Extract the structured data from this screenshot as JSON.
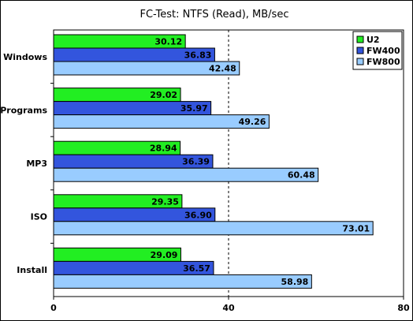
{
  "chart_data": {
    "type": "bar",
    "orientation": "horizontal",
    "title": "FC-Test: NTFS (Read), MB/sec",
    "categories": [
      "Windows",
      "Programs",
      "MP3",
      "ISO",
      "Install"
    ],
    "series": [
      {
        "name": "U2",
        "color": "#22ee22",
        "values": [
          30.12,
          29.02,
          28.94,
          29.35,
          29.09
        ]
      },
      {
        "name": "FW400",
        "color": "#3355dd",
        "values": [
          36.83,
          35.97,
          36.39,
          36.9,
          36.57
        ]
      },
      {
        "name": "FW800",
        "color": "#99ccff",
        "values": [
          42.48,
          49.26,
          60.48,
          73.01,
          58.98
        ]
      }
    ],
    "value_labels": [
      [
        "30.12",
        "29.02",
        "28.94",
        "29.35",
        "29.09"
      ],
      [
        "36.83",
        "35.97",
        "36.39",
        "36.90",
        "36.57"
      ],
      [
        "42.48",
        "49.26",
        "60.48",
        "73.01",
        "58.98"
      ]
    ],
    "xlim": [
      0,
      80
    ],
    "xticks": [
      "0",
      "40",
      "80"
    ],
    "reference_line": 40,
    "grid": false,
    "legend_position": "top-right"
  }
}
